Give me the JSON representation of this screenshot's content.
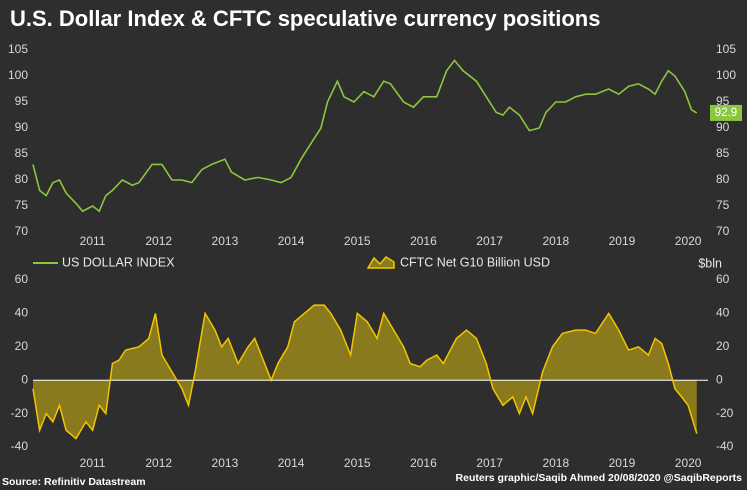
{
  "chart_data": [
    {
      "type": "line",
      "title": "U.S. Dollar Index & CFTC speculative currency positions",
      "x": [
        2010.6,
        2010.7,
        2010.8,
        2010.9,
        2011.0,
        2011.1,
        2011.25,
        2011.35,
        2011.5,
        2011.6,
        2011.7,
        2011.8,
        2011.95,
        2012.1,
        2012.2,
        2012.4,
        2012.55,
        2012.7,
        2012.85,
        2013.0,
        2013.15,
        2013.3,
        2013.5,
        2013.6,
        2013.8,
        2014.0,
        2014.2,
        2014.35,
        2014.5,
        2014.65,
        2014.8,
        2014.95,
        2015.05,
        2015.2,
        2015.3,
        2015.45,
        2015.6,
        2015.75,
        2015.9,
        2016.0,
        2016.2,
        2016.35,
        2016.5,
        2016.7,
        2016.85,
        2016.97,
        2017.1,
        2017.3,
        2017.45,
        2017.6,
        2017.7,
        2017.8,
        2017.95,
        2018.1,
        2018.25,
        2018.35,
        2018.5,
        2018.65,
        2018.8,
        2018.95,
        2019.1,
        2019.3,
        2019.45,
        2019.6,
        2019.75,
        2019.9,
        2020.0,
        2020.1,
        2020.2,
        2020.3,
        2020.45,
        2020.55,
        2020.63
      ],
      "series": [
        {
          "name": "US DOLLAR INDEX",
          "color": "#8cc63f",
          "values": [
            83,
            78,
            77,
            79.5,
            80,
            77.5,
            75.5,
            74,
            75,
            74,
            77,
            78,
            80,
            79,
            79.5,
            83,
            83,
            80,
            80,
            79.5,
            82,
            83,
            84,
            81.5,
            80,
            80.5,
            80,
            79.5,
            80.5,
            84,
            87,
            90,
            95,
            99,
            96,
            95,
            97,
            96,
            99,
            98.5,
            95,
            94,
            96,
            96,
            101,
            103,
            101,
            99,
            96,
            93,
            92.5,
            94,
            92.5,
            89.5,
            90,
            93,
            95,
            95,
            96,
            96.5,
            96.5,
            97.5,
            96.5,
            98,
            98.5,
            97.5,
            96.5,
            99,
            101,
            100,
            97,
            93.5,
            92.9
          ]
        }
      ],
      "xlim": [
        2010.6,
        2020.8
      ],
      "xticks": [
        {
          "value": 2011.5,
          "label": "2011"
        },
        {
          "value": 2012.5,
          "label": "2012"
        },
        {
          "value": 2013.5,
          "label": "2013"
        },
        {
          "value": 2014.5,
          "label": "2014"
        },
        {
          "value": 2015.5,
          "label": "2015"
        },
        {
          "value": 2016.5,
          "label": "2016"
        },
        {
          "value": 2017.5,
          "label": "2017"
        },
        {
          "value": 2018.5,
          "label": "2018"
        },
        {
          "value": 2019.5,
          "label": "2019"
        },
        {
          "value": 2020.5,
          "label": "2020"
        }
      ],
      "ylim": [
        70,
        105
      ],
      "yticks": [
        70,
        75,
        80,
        85,
        90,
        95,
        100,
        105
      ]
    },
    {
      "type": "area",
      "x": [
        2010.6,
        2010.7,
        2010.8,
        2010.9,
        2011.0,
        2011.1,
        2011.25,
        2011.4,
        2011.5,
        2011.6,
        2011.7,
        2011.8,
        2011.9,
        2012.0,
        2012.2,
        2012.35,
        2012.45,
        2012.55,
        2012.7,
        2012.85,
        2012.95,
        2013.05,
        2013.2,
        2013.35,
        2013.45,
        2013.55,
        2013.7,
        2013.85,
        2013.95,
        2014.05,
        2014.2,
        2014.3,
        2014.45,
        2014.55,
        2014.7,
        2014.85,
        2015.0,
        2015.1,
        2015.25,
        2015.4,
        2015.5,
        2015.65,
        2015.8,
        2015.9,
        2016.05,
        2016.2,
        2016.3,
        2016.45,
        2016.55,
        2016.7,
        2016.8,
        2017.0,
        2017.15,
        2017.3,
        2017.45,
        2017.55,
        2017.7,
        2017.85,
        2017.95,
        2018.05,
        2018.15,
        2018.3,
        2018.45,
        2018.6,
        2018.8,
        2018.95,
        2019.1,
        2019.3,
        2019.45,
        2019.6,
        2019.75,
        2019.9,
        2020.0,
        2020.1,
        2020.2,
        2020.3,
        2020.4,
        2020.5,
        2020.63
      ],
      "series": [
        {
          "name": "CFTC Net G10 Billion USD",
          "color": "#f2c500",
          "fill": "#8a7a1e",
          "values": [
            -5,
            -30,
            -20,
            -25,
            -15,
            -30,
            -35,
            -25,
            -30,
            -15,
            -20,
            10,
            12,
            18,
            20,
            25,
            40,
            15,
            5,
            -5,
            -15,
            5,
            40,
            30,
            20,
            25,
            10,
            20,
            25,
            15,
            0,
            10,
            20,
            35,
            40,
            45,
            45,
            40,
            30,
            15,
            40,
            35,
            25,
            40,
            30,
            20,
            10,
            8,
            12,
            15,
            10,
            25,
            30,
            25,
            10,
            -5,
            -15,
            -10,
            -20,
            -10,
            -20,
            5,
            20,
            28,
            30,
            30,
            28,
            40,
            30,
            18,
            20,
            15,
            25,
            22,
            10,
            -5,
            -10,
            -15,
            -32
          ]
        }
      ],
      "xlim": [
        2010.6,
        2020.8
      ],
      "xticks": [
        {
          "value": 2011.5,
          "label": "2011"
        },
        {
          "value": 2012.5,
          "label": "2012"
        },
        {
          "value": 2013.5,
          "label": "2013"
        },
        {
          "value": 2014.5,
          "label": "2014"
        },
        {
          "value": 2015.5,
          "label": "2015"
        },
        {
          "value": 2016.5,
          "label": "2016"
        },
        {
          "value": 2017.5,
          "label": "2017"
        },
        {
          "value": 2018.5,
          "label": "2018"
        },
        {
          "value": 2019.5,
          "label": "2019"
        },
        {
          "value": 2020.5,
          "label": "2020"
        }
      ],
      "ylim": [
        -40,
        60
      ],
      "yticks": [
        -40,
        -20,
        0,
        20,
        40,
        60
      ],
      "y_unit": "$bln",
      "source": "Source: Refinitiv Datastream",
      "credit": "Reuters graphic/Saqib Ahmed 20/08/2020 @SaqibReports"
    }
  ]
}
